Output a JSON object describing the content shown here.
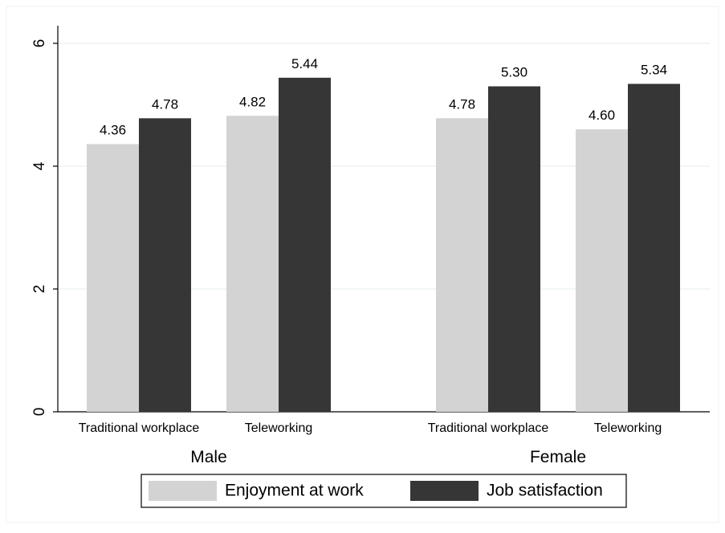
{
  "chart_data": {
    "type": "bar",
    "ylim": [
      0,
      6
    ],
    "yticks": [
      "0",
      "2",
      "4",
      "6"
    ],
    "ytick_values": [
      0,
      2,
      4,
      6
    ],
    "grid": true,
    "legend_position": "bottom",
    "groups": [
      {
        "label": "Male",
        "categories": [
          {
            "label": "Traditional workplace",
            "values": [
              4.36,
              4.78
            ],
            "value_labels": [
              "4.36",
              "4.78"
            ]
          },
          {
            "label": "Teleworking",
            "values": [
              4.82,
              5.44
            ],
            "value_labels": [
              "4.82",
              "5.44"
            ]
          }
        ]
      },
      {
        "label": "Female",
        "categories": [
          {
            "label": "Traditional workplace",
            "values": [
              4.78,
              5.3
            ],
            "value_labels": [
              "4.78",
              "5.30"
            ]
          },
          {
            "label": "Teleworking",
            "values": [
              4.6,
              5.34
            ],
            "value_labels": [
              "4.60",
              "5.34"
            ]
          }
        ]
      }
    ],
    "series": [
      {
        "name": "Enjoyment at work",
        "color": "#d3d3d3"
      },
      {
        "name": "Job satisfaction",
        "color": "#363636"
      }
    ]
  }
}
